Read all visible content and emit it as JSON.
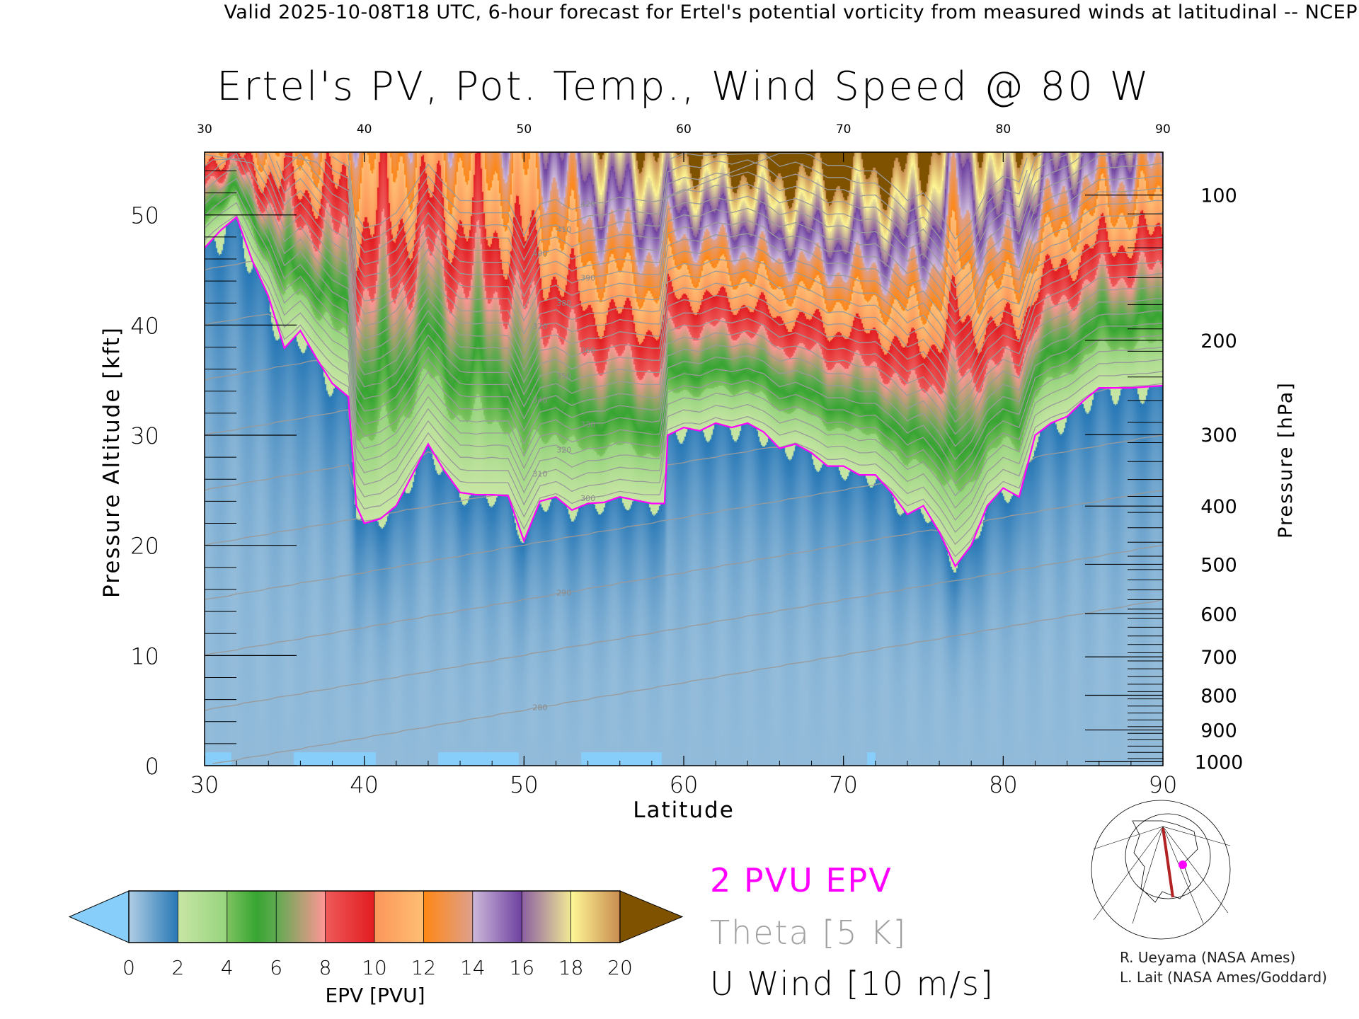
{
  "header": {
    "text": "Valid 2025-10-08T18 UTC, 6-hour forecast for Ertel's potential vorticity from measured winds at latitudinal -- NCEP"
  },
  "chart_data": {
    "type": "heatmap",
    "title": "Ertel's PV, Pot. Temp., Wind Speed @ 80 W",
    "xlabel": "Latitude",
    "ylabel": "Pressure Altitude [kft]",
    "y2label": "Pressure [hPa]",
    "xlim": [
      30,
      90
    ],
    "ylim": [
      0,
      55.7
    ],
    "x_ticks": [
      "30",
      "40",
      "50",
      "60",
      "70",
      "80",
      "90"
    ],
    "x_top_ticks": [
      "30",
      "40",
      "50",
      "60",
      "70",
      "80",
      "90"
    ],
    "y_ticks": [
      "0",
      "10",
      "20",
      "30",
      "40",
      "50"
    ],
    "y2_ticks": [
      "100",
      "200",
      "300",
      "400",
      "500",
      "600",
      "700",
      "800",
      "900",
      "1000"
    ],
    "tropopause_2pvu": {
      "lat": [
        30,
        31,
        32,
        33,
        34,
        35,
        36,
        37,
        38,
        39,
        39.5,
        40,
        41,
        42,
        43,
        44,
        45,
        46,
        47,
        48,
        49,
        50,
        51,
        52,
        53,
        54,
        55,
        56,
        57,
        58,
        58.8,
        59,
        60,
        61,
        62,
        63,
        64,
        65,
        66,
        67,
        68,
        69,
        70,
        71,
        72,
        73,
        74,
        75,
        76,
        77,
        78,
        79,
        80,
        81,
        82,
        83,
        84,
        85,
        86,
        88,
        90
      ],
      "kft": [
        47,
        48.6,
        49.8,
        45.8,
        42.6,
        37.9,
        39.5,
        37,
        34.7,
        33.5,
        23.6,
        22,
        22.4,
        23.6,
        26.4,
        29.2,
        26.8,
        24.8,
        24.6,
        24.6,
        24.5,
        20.4,
        24,
        24.4,
        23.2,
        23.8,
        23.9,
        24.4,
        24.1,
        23.8,
        23.8,
        30,
        30.7,
        30.4,
        31.1,
        30.7,
        31.1,
        30.3,
        28.8,
        29.2,
        28.4,
        27.2,
        27.2,
        26.4,
        26.4,
        24.8,
        22.8,
        23.6,
        21.2,
        18.1,
        20,
        23.6,
        25.2,
        24.4,
        30,
        31.1,
        31.7,
        33.1,
        34.3,
        34.3,
        34.5
      ]
    },
    "pv_at_top_pvu": {
      "lat": [
        30,
        35,
        40,
        45,
        50,
        55,
        60,
        65,
        70,
        75,
        77,
        80,
        85,
        90
      ],
      "values": [
        10,
        12,
        12,
        12,
        13,
        18,
        20,
        22,
        22,
        21,
        16,
        20,
        16,
        15
      ]
    },
    "theta_levels_K": [
      280,
      290,
      300,
      310,
      320,
      330,
      340,
      350,
      360,
      370,
      380,
      390,
      400,
      410,
      420
    ],
    "theta_interval_K": 5,
    "colorbar": {
      "label": "EPV [PVU]",
      "ticks": [
        "0",
        "2",
        "4",
        "6",
        "8",
        "10",
        "12",
        "14",
        "16",
        "18",
        "20"
      ],
      "under_color": "#87cefa",
      "over_color": "#7f5200"
    }
  },
  "legend": {
    "pv_line": "2 PVU EPV",
    "theta": "Theta [5 K]",
    "wind": "U Wind [10 m/s]",
    "pv_color": "#ff00ff",
    "theta_color": "#a0a0a0"
  },
  "credits": [
    "R. Ueyama (NASA Ames)",
    "L. Lait (NASA Ames/Goddard)"
  ]
}
